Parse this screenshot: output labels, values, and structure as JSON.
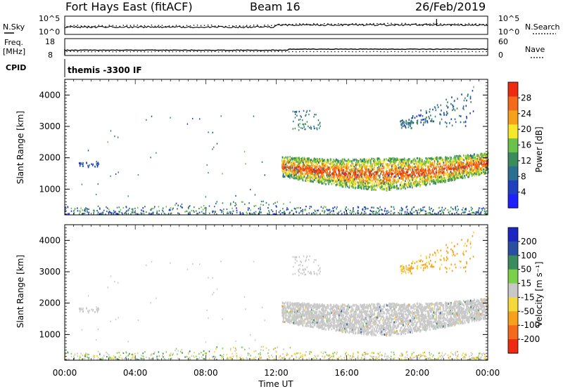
{
  "header": {
    "station": "Fort Hays East (fitACF)",
    "beam": "Beam 16",
    "date": "26/Feb/2019"
  },
  "status_panels": {
    "nsky_label": "N.Sky",
    "nsky_ticks": [
      "10^5",
      "10^0"
    ],
    "nsearch_label": "N.Search",
    "nsearch_ticks": [
      "10^5",
      "10^0"
    ],
    "freq_label_line1": "Freq.",
    "freq_label_line2": "[MHz]",
    "freq_ticks": [
      "18",
      "8"
    ],
    "nave_label": "Nave",
    "nave_ticks": [
      "60",
      "0"
    ],
    "cpid_label": "CPID",
    "cpid_text": "themis -3300 IF"
  },
  "chart_data": [
    {
      "type": "heatmap",
      "name": "power",
      "xlabel": "",
      "ylabel": "Slant Range [km]",
      "x_ticks": [
        "00:00",
        "04:00",
        "08:00",
        "12:00",
        "16:00",
        "20:00",
        "00:00"
      ],
      "xlim_hours": [
        0,
        24
      ],
      "ylim": [
        180,
        4500
      ],
      "y_ticks": [
        1000,
        2000,
        3000,
        4000
      ],
      "colorbar_label": "Power [dB]",
      "colorbar_ticks": [
        4,
        8,
        12,
        16,
        20,
        24,
        28
      ],
      "colorbar_range": [
        0,
        30
      ],
      "colorscale": [
        "#1f22ff",
        "#2140c0",
        "#2a6f8f",
        "#3b8c5c",
        "#6bc24a",
        "#f5e82a",
        "#f5a11c",
        "#f46a1a",
        "#ee2b10"
      ],
      "features": [
        {
          "label": "near-range ground scatter",
          "x_hours": [
            0,
            24
          ],
          "range_km": [
            200,
            600
          ]
        },
        {
          "label": "main echo band",
          "x_hours": [
            12.3,
            24
          ],
          "range_km": [
            1200,
            2500
          ],
          "typical_db": 22
        },
        {
          "label": "high-range patches",
          "x_hours": [
            21,
            23.2
          ],
          "range_km": [
            3100,
            4200
          ]
        },
        {
          "label": "early patch",
          "x_hours": [
            0.7,
            1.9
          ],
          "range_km": [
            1700,
            1900
          ]
        }
      ]
    },
    {
      "type": "heatmap",
      "name": "velocity",
      "xlabel": "Time UT",
      "ylabel": "Slant Range [km]",
      "x_ticks": [
        "00:00",
        "04:00",
        "08:00",
        "12:00",
        "16:00",
        "20:00",
        "00:00"
      ],
      "xlim_hours": [
        0,
        24
      ],
      "ylim": [
        180,
        4500
      ],
      "y_ticks": [
        1000,
        2000,
        3000,
        4000
      ],
      "colorbar_label": "Velocity [m s⁻¹]",
      "colorbar_ticks": [
        "200",
        "100",
        "50",
        "15",
        "-15",
        "-50",
        "-100",
        "-200"
      ],
      "colorbar_range": [
        -250,
        250
      ],
      "colorscale": [
        "#1b27c0",
        "#2a4fa0",
        "#3b8c5c",
        "#7bd04a",
        "#c8c8c8",
        "#c8c8c8",
        "#f5d83a",
        "#f5a11c",
        "#f46a1a",
        "#ee2b10"
      ],
      "features": [
        {
          "label": "ground scatter (low velocity)",
          "x_hours": [
            12.3,
            24
          ],
          "range_km": [
            1200,
            2500
          ]
        },
        {
          "label": "near-range returns",
          "x_hours": [
            0,
            24
          ],
          "range_km": [
            200,
            600
          ]
        }
      ]
    }
  ]
}
